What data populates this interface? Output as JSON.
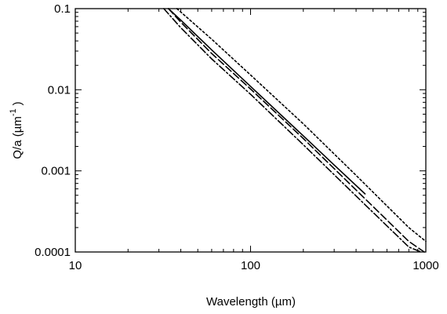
{
  "chart_data": {
    "type": "line",
    "xscale": "log",
    "yscale": "log",
    "xlim": [
      10,
      1000
    ],
    "ylim": [
      0.0001,
      0.1
    ],
    "xlabel": "Wavelength (µm)",
    "ylabel_main": "Q/a (µm",
    "ylabel_exp": "-1",
    "ylabel_close": ")",
    "x_ticks": [
      {
        "value": 10,
        "label": "10"
      },
      {
        "value": 100,
        "label": "100"
      },
      {
        "value": 1000,
        "label": "1000"
      }
    ],
    "y_ticks": [
      {
        "value": 0.1,
        "label": "0.1"
      },
      {
        "value": 0.01,
        "label": "0.01"
      },
      {
        "value": 0.001,
        "label": "0.001"
      },
      {
        "value": 0.0001,
        "label": "0.0001"
      }
    ],
    "grid": false,
    "legend": "none",
    "series": [
      {
        "style": "dotted",
        "x": [
          38,
          60,
          100,
          200,
          400,
          800,
          1000
        ],
        "y": [
          0.1,
          0.042,
          0.0152,
          0.0038,
          0.00088,
          0.0002,
          0.000135
        ]
      },
      {
        "style": "solid",
        "x": [
          34,
          40,
          60,
          100,
          200,
          300,
          450
        ],
        "y": [
          0.1,
          0.072,
          0.031,
          0.011,
          0.0027,
          0.00118,
          0.00052
        ]
      },
      {
        "style": "dashed",
        "x": [
          34,
          40,
          60,
          100,
          200,
          400,
          800,
          980
        ],
        "y": [
          0.1,
          0.068,
          0.028,
          0.0102,
          0.0025,
          0.00058,
          0.000135,
          0.0001
        ]
      },
      {
        "style": "dashdot",
        "x": [
          32,
          40,
          60,
          100,
          200,
          400,
          800,
          940
        ],
        "y": [
          0.1,
          0.058,
          0.024,
          0.0088,
          0.0021,
          0.00049,
          0.000115,
          0.0001
        ]
      }
    ]
  }
}
